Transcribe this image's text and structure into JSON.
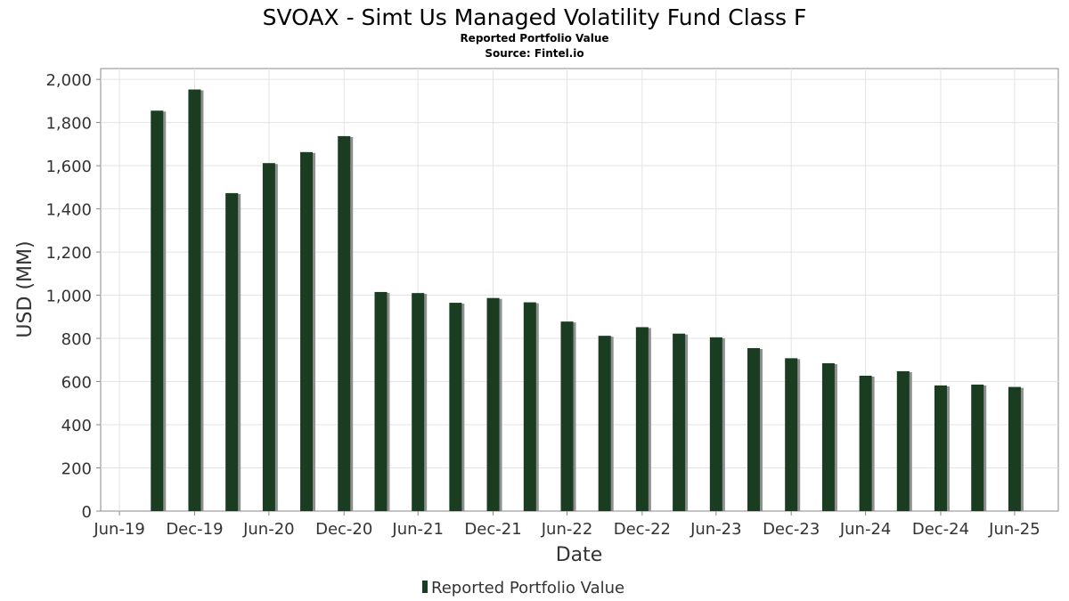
{
  "chart_data": {
    "type": "bar",
    "title": "SVOAX - Simt Us Managed Volatility Fund Class F",
    "subtitle": "Reported Portfolio Value",
    "source": "Source: Fintel.io",
    "xlabel": "Date",
    "ylabel": "USD (MM)",
    "ylim": [
      0,
      2050
    ],
    "yticks": [
      0,
      200,
      400,
      600,
      800,
      1000,
      1200,
      1400,
      1600,
      1800,
      2000
    ],
    "ytick_labels": [
      "0",
      "200",
      "400",
      "600",
      "800",
      "1,000",
      "1,200",
      "1,400",
      "1,600",
      "1,800",
      "2,000"
    ],
    "xlim": [
      "2019-05-15",
      "2025-10-15"
    ],
    "xticks": [
      "2019-06-30",
      "2019-12-31",
      "2020-06-30",
      "2020-12-31",
      "2021-06-30",
      "2021-12-31",
      "2022-06-30",
      "2022-12-31",
      "2023-06-30",
      "2023-12-31",
      "2024-06-30",
      "2024-12-31",
      "2025-06-30"
    ],
    "xtick_labels": [
      "Jun-19",
      "Dec-19",
      "Jun-20",
      "Dec-20",
      "Jun-21",
      "Dec-21",
      "Jun-22",
      "Dec-22",
      "Jun-23",
      "Dec-23",
      "Jun-24",
      "Dec-24",
      "Jun-25"
    ],
    "grid": true,
    "legend_position": "bottom",
    "bar_color": "#1a3d22",
    "series": [
      {
        "name": "Reported Portfolio Value",
        "x": [
          "2019-09-30",
          "2019-12-31",
          "2020-03-31",
          "2020-06-30",
          "2020-09-30",
          "2020-12-31",
          "2021-03-31",
          "2021-06-30",
          "2021-09-30",
          "2021-12-31",
          "2022-03-31",
          "2022-06-30",
          "2022-09-30",
          "2022-12-31",
          "2023-03-31",
          "2023-06-30",
          "2023-09-30",
          "2023-12-31",
          "2024-03-31",
          "2024-06-30",
          "2024-09-30",
          "2024-12-31",
          "2025-03-31",
          "2025-06-30"
        ],
        "values": [
          1855,
          1953,
          1473,
          1612,
          1663,
          1737,
          1015,
          1010,
          965,
          987,
          967,
          878,
          812,
          852,
          822,
          805,
          755,
          708,
          685,
          627,
          648,
          582,
          586,
          575
        ]
      }
    ]
  }
}
